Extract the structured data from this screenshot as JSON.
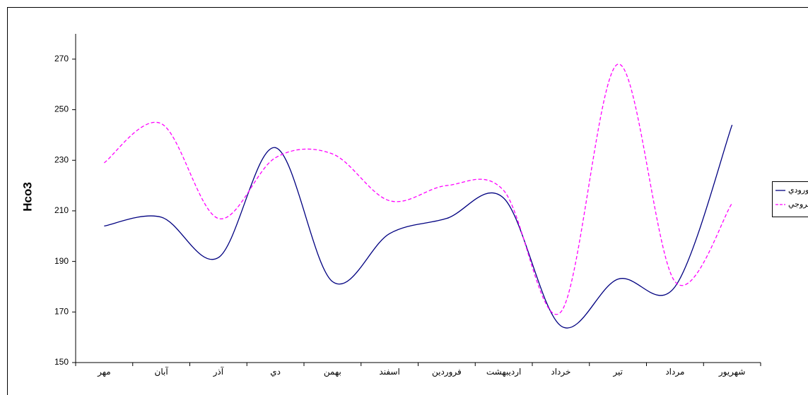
{
  "chart_data": {
    "type": "line",
    "y_label": "Hco3",
    "categories": [
      "مهر",
      "آبان",
      "آذر",
      "دي",
      "بهمن",
      "اسفند",
      "فروردين",
      "ارديبهشت",
      "خرداد",
      "تير",
      "مرداد",
      "شهريور"
    ],
    "series": [
      {
        "name": "ورودي",
        "color": "#000080",
        "dash": false,
        "values": [
          204,
          207.5,
          191.5,
          235,
          182,
          201,
          207,
          215,
          164.5,
          183,
          180,
          244
        ]
      },
      {
        "name": "خروجي",
        "color": "#ff00ff",
        "dash": true,
        "values": [
          229,
          244.5,
          207,
          231,
          232.5,
          214,
          220,
          218,
          170,
          268,
          182,
          213
        ]
      }
    ],
    "ylim": [
      150,
      280
    ],
    "yticks": [
      150,
      170,
      190,
      210,
      230,
      250,
      270
    ],
    "smooth": true,
    "legend": "right"
  }
}
